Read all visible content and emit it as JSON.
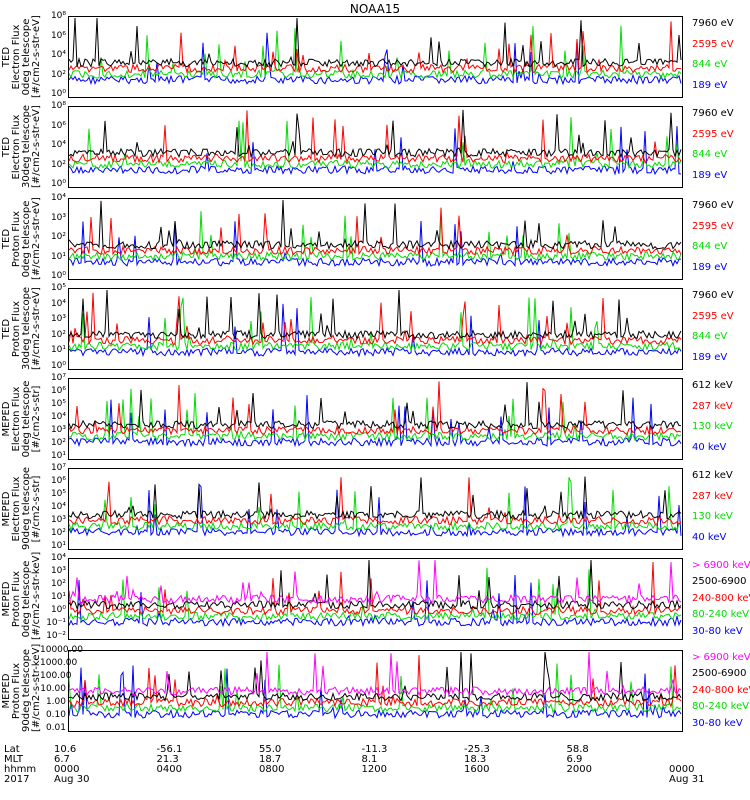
{
  "title": "NOAA15",
  "colors": {
    "black": "#000000",
    "red": "#ff0000",
    "green": "#00dd00",
    "blue": "#0000ff",
    "magenta": "#ff00ff"
  },
  "panels": [
    {
      "id": "ted-e-0",
      "ylabel": [
        "TED",
        "Electron Flux",
        "0deg telescope",
        "[#/cm2-s-str-eV]"
      ],
      "ticks": [
        "10⁸",
        "10⁶",
        "10⁴",
        "10²",
        "10⁰"
      ],
      "legend": [
        {
          "text": "7960 eV",
          "color": "#000000"
        },
        {
          "text": "2595 eV",
          "color": "#ff0000"
        },
        {
          "text": "844 eV",
          "color": "#00dd00"
        },
        {
          "text": "189 eV",
          "color": "#0000ff"
        }
      ]
    },
    {
      "id": "ted-e-30",
      "ylabel": [
        "TED",
        "Electron Flux",
        "30deg telescope",
        "[#/cm2-s-str-eV]"
      ],
      "ticks": [
        "10⁸",
        "10⁶",
        "10⁴",
        "10²",
        "10⁰"
      ],
      "legend": [
        {
          "text": "7960 eV",
          "color": "#000000"
        },
        {
          "text": "2595 eV",
          "color": "#ff0000"
        },
        {
          "text": "844 eV",
          "color": "#00dd00"
        },
        {
          "text": "189 eV",
          "color": "#0000ff"
        }
      ]
    },
    {
      "id": "ted-p-0",
      "ylabel": [
        "TED",
        "Proton Flux",
        "0deg telescope",
        "[#/cm2-s-str-eV]"
      ],
      "ticks": [
        "10⁴",
        "10³",
        "10²",
        "10¹",
        "10⁰"
      ],
      "legend": [
        {
          "text": "7960 eV",
          "color": "#000000"
        },
        {
          "text": "2595 eV",
          "color": "#ff0000"
        },
        {
          "text": "844 eV",
          "color": "#00dd00"
        },
        {
          "text": "189 eV",
          "color": "#0000ff"
        }
      ]
    },
    {
      "id": "ted-p-30",
      "ylabel": [
        "TED",
        "Proton Flux",
        "30deg telescope",
        "[#/cm2-s-str-eV]"
      ],
      "ticks": [
        "10⁵",
        "10⁴",
        "10³",
        "10²",
        "10¹",
        "10⁰"
      ],
      "legend": [
        {
          "text": "7960 eV",
          "color": "#000000"
        },
        {
          "text": "2595 eV",
          "color": "#ff0000"
        },
        {
          "text": "844 eV",
          "color": "#00dd00"
        },
        {
          "text": "189 eV",
          "color": "#0000ff"
        }
      ]
    },
    {
      "id": "meped-e-0",
      "ylabel": [
        "MEPED",
        "Electron Flux",
        "0deg telescope",
        "[#/cm2-s-str]"
      ],
      "ticks": [
        "10⁷",
        "10⁶",
        "10⁵",
        "10⁴",
        "10³",
        "10²",
        "10¹"
      ],
      "legend": [
        {
          "text": "612 keV",
          "color": "#000000"
        },
        {
          "text": "287 keV",
          "color": "#ff0000"
        },
        {
          "text": "130 keV",
          "color": "#00dd00"
        },
        {
          "text": "40 keV",
          "color": "#0000ff"
        }
      ]
    },
    {
      "id": "meped-e-90",
      "ylabel": [
        "MEPED",
        "Electron Flux",
        "90deg telescope",
        "[#/cm2-s-str]"
      ],
      "ticks": [
        "10⁷",
        "10⁶",
        "10⁵",
        "10⁴",
        "10³",
        "10²",
        "10¹"
      ],
      "legend": [
        {
          "text": "612 keV",
          "color": "#000000"
        },
        {
          "text": "287 keV",
          "color": "#ff0000"
        },
        {
          "text": "130 keV",
          "color": "#00dd00"
        },
        {
          "text": "40 keV",
          "color": "#0000ff"
        }
      ]
    },
    {
      "id": "meped-p-0",
      "ylabel": [
        "MEPED",
        "Proton Flux",
        "0deg telescope",
        "[#/cm2-s-str-keV]"
      ],
      "ticks": [
        "10⁴",
        "10³",
        "10²",
        "10¹",
        "10⁰",
        "10⁻¹",
        "10⁻²"
      ],
      "legend": [
        {
          "text": "> 6900 keV",
          "color": "#ff00ff"
        },
        {
          "text": "2500-6900",
          "color": "#000000"
        },
        {
          "text": "240-800 keV",
          "color": "#ff0000"
        },
        {
          "text": "80-240 keV",
          "color": "#00dd00"
        },
        {
          "text": "30-80 keV",
          "color": "#0000ff"
        }
      ]
    },
    {
      "id": "meped-p-90",
      "ylabel": [
        "MEPED",
        "Proton Flux",
        "90deg telescope",
        "[#/cm2-s-str-keV]"
      ],
      "ticks": [
        "10000.00",
        "1000.00",
        "100.00",
        "10.00",
        "1.00",
        "0.10",
        "0.01"
      ],
      "legend": [
        {
          "text": "> 6900 keV",
          "color": "#ff00ff"
        },
        {
          "text": "2500-6900",
          "color": "#000000"
        },
        {
          "text": "240-800 keV",
          "color": "#ff0000"
        },
        {
          "text": "80-240 keV",
          "color": "#00dd00"
        },
        {
          "text": "30-80 keV",
          "color": "#0000ff"
        }
      ]
    }
  ],
  "xaxis": {
    "row_labels": [
      "Lat",
      "MLT",
      "hhmm",
      "2017"
    ],
    "columns": [
      {
        "lat": "10.6",
        "mlt": "6.7",
        "hhmm": "0000",
        "date": "Aug 30"
      },
      {
        "lat": "-56.1",
        "mlt": "21.3",
        "hhmm": "0400",
        "date": ""
      },
      {
        "lat": "55.0",
        "mlt": "18.7",
        "hhmm": "0800",
        "date": ""
      },
      {
        "lat": "-11.3",
        "mlt": "8.1",
        "hhmm": "1200",
        "date": ""
      },
      {
        "lat": "-25.3",
        "mlt": "18.3",
        "hhmm": "1600",
        "date": ""
      },
      {
        "lat": "58.8",
        "mlt": "6.9",
        "hhmm": "2000",
        "date": ""
      },
      {
        "lat": "",
        "mlt": "",
        "hhmm": "0000",
        "date": "Aug 31"
      }
    ]
  }
}
